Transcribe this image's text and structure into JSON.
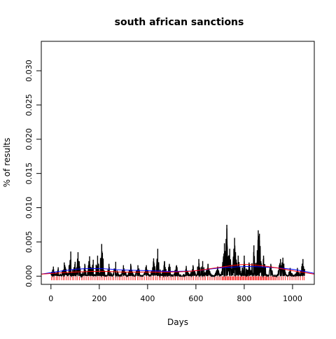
{
  "chart_data": {
    "type": "line",
    "title": "south african sanctions",
    "xlabel": "Days",
    "ylabel": "% of results",
    "xlim": [
      -40,
      1090
    ],
    "ylim": [
      -0.0012,
      0.0343
    ],
    "x_ticks": [
      "0",
      "200",
      "400",
      "600",
      "800",
      "1000"
    ],
    "y_ticks": [
      "0.000",
      "0.005",
      "0.010",
      "0.015",
      "0.020",
      "0.025",
      "0.030"
    ],
    "grid": false,
    "legend": "none",
    "colors": {
      "daily": "#000000",
      "smooth_blue": "#0000ff",
      "smooth_red": "#ff0000",
      "rug": "#ff0000"
    },
    "daily_peaks": [
      [
        10,
        0.0014
      ],
      [
        30,
        0.0013
      ],
      [
        55,
        0.002
      ],
      [
        82,
        0.0036
      ],
      [
        100,
        0.0021
      ],
      [
        112,
        0.0035
      ],
      [
        140,
        0.0018
      ],
      [
        160,
        0.0029
      ],
      [
        175,
        0.0024
      ],
      [
        193,
        0.003
      ],
      [
        210,
        0.0047
      ],
      [
        240,
        0.0018
      ],
      [
        268,
        0.0021
      ],
      [
        300,
        0.0016
      ],
      [
        330,
        0.0018
      ],
      [
        360,
        0.0016
      ],
      [
        395,
        0.0016
      ],
      [
        425,
        0.0026
      ],
      [
        442,
        0.004
      ],
      [
        470,
        0.0022
      ],
      [
        490,
        0.0018
      ],
      [
        520,
        0.0016
      ],
      [
        560,
        0.0015
      ],
      [
        588,
        0.0016
      ],
      [
        612,
        0.0025
      ],
      [
        628,
        0.0022
      ],
      [
        650,
        0.0018
      ],
      [
        690,
        0.0014
      ],
      [
        718,
        0.0048
      ],
      [
        728,
        0.0075
      ],
      [
        740,
        0.004
      ],
      [
        760,
        0.0056
      ],
      [
        775,
        0.003
      ],
      [
        800,
        0.003
      ],
      [
        820,
        0.002
      ],
      [
        840,
        0.0045
      ],
      [
        858,
        0.0067
      ],
      [
        863,
        0.0062
      ],
      [
        880,
        0.003
      ],
      [
        910,
        0.0018
      ],
      [
        950,
        0.0025
      ],
      [
        960,
        0.0027
      ],
      [
        990,
        0.0012
      ],
      [
        1020,
        0.0012
      ],
      [
        1043,
        0.0025
      ]
    ],
    "smooth_blue": [
      [
        -40,
        0.0003
      ],
      [
        100,
        0.001
      ],
      [
        200,
        0.0011
      ],
      [
        300,
        0.0009
      ],
      [
        400,
        0.0008
      ],
      [
        500,
        0.0007
      ],
      [
        600,
        0.0008
      ],
      [
        700,
        0.0012
      ],
      [
        800,
        0.0014
      ],
      [
        900,
        0.0013
      ],
      [
        1000,
        0.001
      ],
      [
        1090,
        0.0004
      ]
    ],
    "smooth_red": [
      [
        -40,
        0.0003
      ],
      [
        100,
        0.0006
      ],
      [
        200,
        0.0007
      ],
      [
        300,
        0.0006
      ],
      [
        400,
        0.0006
      ],
      [
        500,
        0.0006
      ],
      [
        600,
        0.0008
      ],
      [
        700,
        0.0013
      ],
      [
        800,
        0.0017
      ],
      [
        900,
        0.0014
      ],
      [
        1000,
        0.0008
      ],
      [
        1090,
        0.0003
      ]
    ],
    "rug_days": [
      2,
      9,
      15,
      22,
      28,
      35,
      44,
      51,
      58,
      66,
      73,
      80,
      88,
      95,
      103,
      110,
      118,
      126,
      133,
      140,
      148,
      155,
      163,
      170,
      178,
      186,
      193,
      200,
      207,
      215,
      222,
      230,
      238,
      245,
      253,
      260,
      268,
      276,
      283,
      290,
      298,
      305,
      313,
      320,
      328,
      336,
      343,
      350,
      358,
      365,
      373,
      380,
      388,
      396,
      403,
      410,
      418,
      425,
      433,
      440,
      448,
      455,
      463,
      470,
      478,
      485,
      493,
      500,
      508,
      515,
      523,
      530,
      538,
      545,
      553,
      560,
      568,
      575,
      583,
      590,
      598,
      605,
      612,
      620,
      627,
      634,
      640,
      648,
      655,
      662,
      670,
      677,
      684,
      690,
      696,
      702,
      708,
      712,
      716,
      720,
      724,
      728,
      732,
      736,
      740,
      744,
      748,
      752,
      756,
      760,
      764,
      768,
      772,
      776,
      780,
      784,
      788,
      792,
      796,
      800,
      804,
      808,
      812,
      816,
      820,
      824,
      828,
      832,
      836,
      840,
      844,
      848,
      852,
      856,
      860,
      864,
      868,
      872,
      876,
      880,
      884,
      888,
      892,
      896,
      900,
      905,
      910,
      915,
      920,
      925,
      930,
      936,
      942,
      948,
      955,
      962,
      970,
      978,
      986,
      994,
      1002,
      1010,
      1018,
      1026,
      1034,
      1042,
      1048
    ]
  }
}
